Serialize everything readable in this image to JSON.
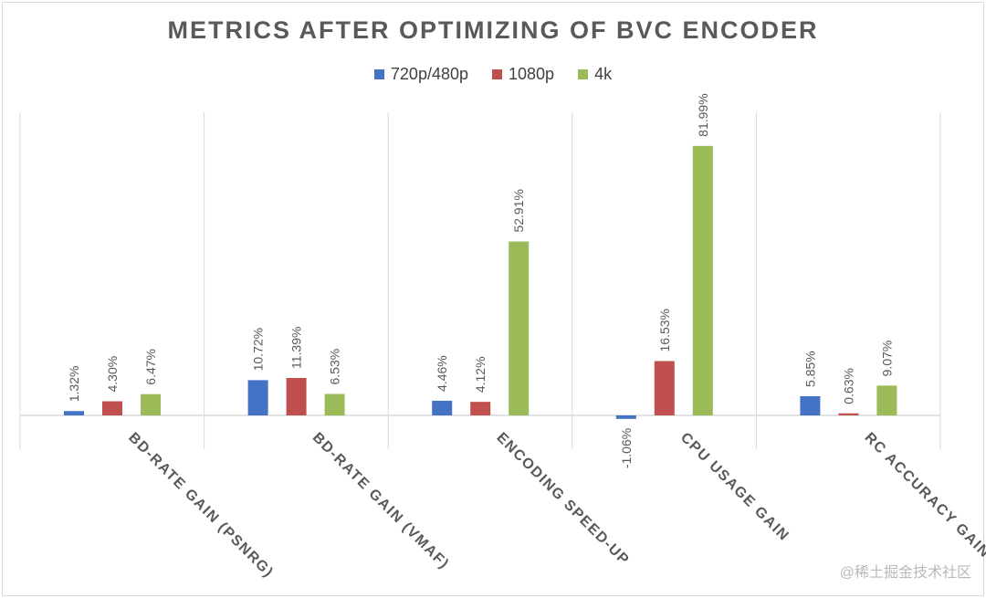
{
  "chart_data": {
    "type": "bar",
    "title": "METRICS AFTER OPTIMIZING OF BVC ENCODER",
    "categories": [
      "BD-RATE GAIN (PSNRG)",
      "BD-RATE GAIN (VMAF)",
      "ENCODING SPEED-UP",
      "CPU USAGE GAIN",
      "RC ACCURACY GAIN"
    ],
    "series": [
      {
        "name": "720p/480p",
        "color": "#4472c4",
        "values": [
          1.32,
          10.72,
          4.46,
          -1.06,
          5.85
        ]
      },
      {
        "name": "1080p",
        "color": "#c0504d",
        "values": [
          4.3,
          11.39,
          4.12,
          16.53,
          0.63
        ]
      },
      {
        "name": "4k",
        "color": "#9bbb59",
        "values": [
          6.47,
          6.53,
          52.91,
          81.99,
          9.07
        ]
      }
    ],
    "data_labels": [
      [
        "1.32%",
        "10.72%",
        "4.46%",
        "-1.06%",
        "5.85%"
      ],
      [
        "4.30%",
        "11.39%",
        "4.12%",
        "16.53%",
        "0.63%"
      ],
      [
        "6.47%",
        "6.53%",
        "52.91%",
        "81.99%",
        "9.07%"
      ]
    ],
    "xlabel": "",
    "ylabel": "",
    "ylim": [
      -10,
      90
    ],
    "grid": false,
    "legend_position": "top"
  },
  "watermark": "@稀土掘金技术社区"
}
